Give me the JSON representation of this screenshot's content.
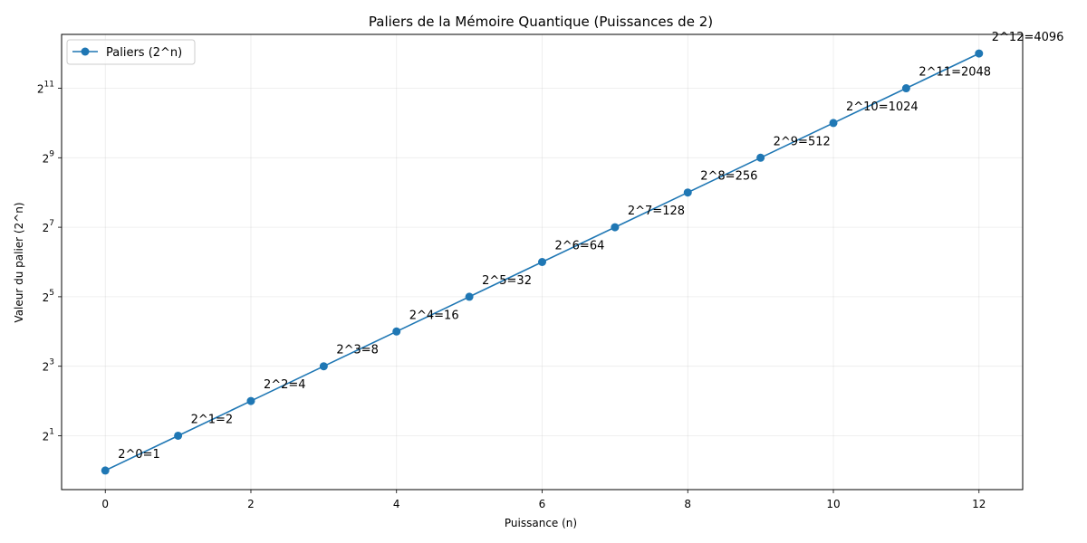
{
  "chart_data": {
    "type": "line",
    "title": "Paliers de la Mémoire Quantique (Puissances de 2)",
    "xlabel": "Puissance (n)",
    "ylabel": "Valeur du palier (2^n)",
    "y_scale": "log2",
    "grid": true,
    "legend_position": "top-left",
    "xlim": [
      -0.6,
      12.6
    ],
    "ylim_log2": [
      -0.55,
      12.55
    ],
    "x_ticks": [
      0,
      2,
      4,
      6,
      8,
      10,
      12
    ],
    "y_tick_exponents": [
      1,
      3,
      5,
      7,
      9,
      11
    ],
    "y_tick_base": "2",
    "series": [
      {
        "name": "Paliers (2^n)",
        "color": "#1f77b4",
        "marker": "circle",
        "x": [
          0,
          1,
          2,
          3,
          4,
          5,
          6,
          7,
          8,
          9,
          10,
          11,
          12
        ],
        "y": [
          1,
          2,
          4,
          8,
          16,
          32,
          64,
          128,
          256,
          512,
          1024,
          2048,
          4096
        ]
      }
    ],
    "annotations": [
      "2^0=1",
      "2^1=2",
      "2^2=4",
      "2^3=8",
      "2^4=16",
      "2^5=32",
      "2^6=64",
      "2^7=128",
      "2^8=256",
      "2^9=512",
      "2^10=1024",
      "2^11=2048",
      "2^12=4096"
    ]
  }
}
